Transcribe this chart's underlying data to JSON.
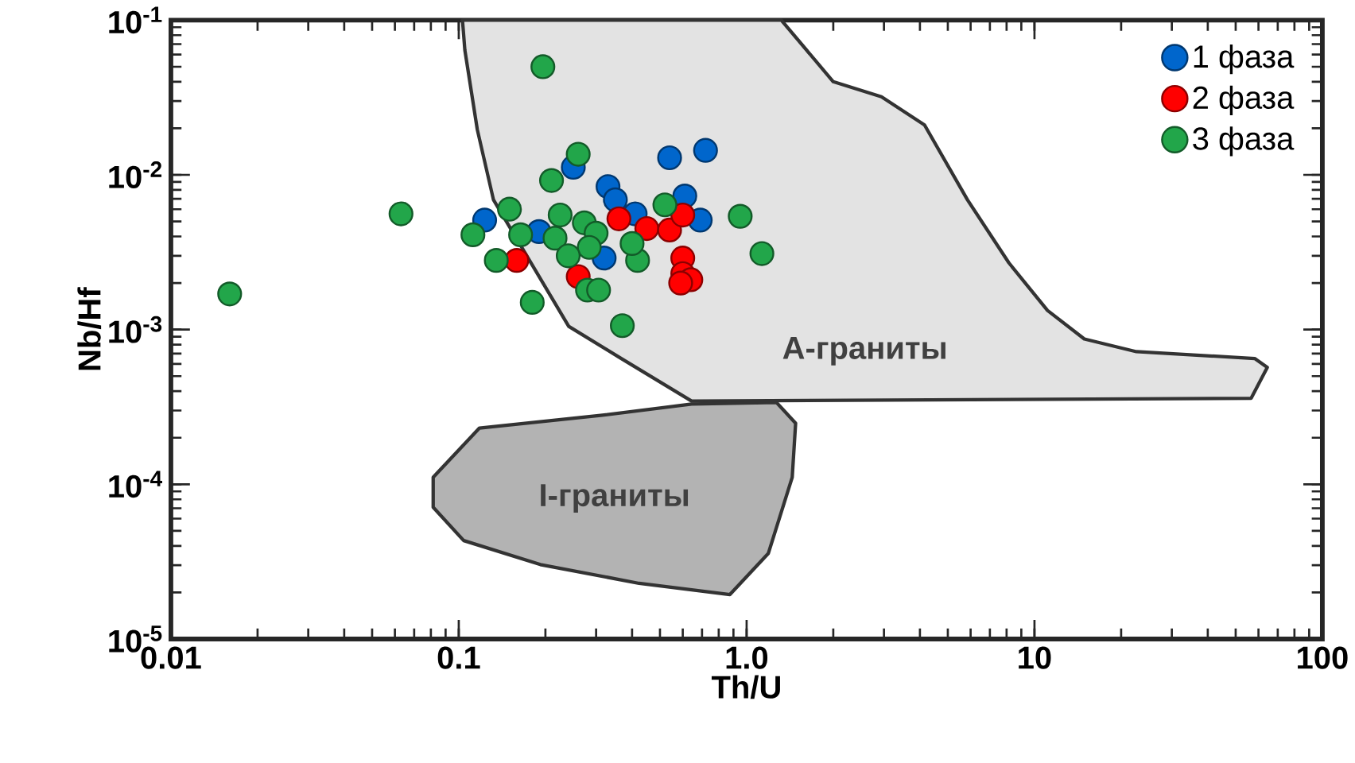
{
  "chart_data": {
    "type": "scatter",
    "xlabel": "Th/U",
    "ylabel": "Nb/Hf",
    "log": "xy",
    "xlim": [
      0.01,
      100
    ],
    "ylim": [
      1e-05,
      0.1
    ],
    "xticks": [
      0.01,
      0.1,
      {
        "value": 1,
        "label": "1.0"
      },
      10,
      100
    ],
    "yticks": [
      {
        "value": 1e-05,
        "label": "10$^{-5}$"
      },
      {
        "value": 0.0001,
        "label": "10$^{-4}$"
      },
      {
        "value": 0.001,
        "label": "10$^{-3}$"
      },
      {
        "value": 0.01,
        "label": "10$^{-2}$"
      },
      {
        "value": 0.1,
        "label": "10$^{-1}$"
      }
    ],
    "legend": "top right",
    "grid": false,
    "series": [
      {
        "type": "area",
        "name": "A-граниты",
        "marker": "none",
        "color": "#e3e3e3",
        "x": [
          0.103,
          0.105,
          0.116,
          0.132,
          0.241,
          0.367,
          0.644,
          56.6,
          64.4,
          58.2,
          22.6,
          14.9,
          11.1,
          8.15,
          5.85,
          4.15,
          2.94,
          2.0,
          1.32
        ],
        "values": [
          0.1,
          0.064,
          0.0196,
          0.0069,
          0.00105,
          0.00065,
          0.000345,
          0.00036,
          0.00057,
          0.00065,
          0.00072,
          0.00087,
          0.00133,
          0.0027,
          0.0069,
          0.021,
          0.032,
          0.04,
          0.1
        ]
      },
      {
        "type": "area",
        "name": "I-граниты",
        "marker": "none",
        "color": "#b3b3b3",
        "x": [
          0.0815,
          0.118,
          0.311,
          0.644,
          1.27,
          1.48,
          1.44,
          1.19,
          0.875,
          0.423,
          0.192,
          0.104,
          0.0815
        ],
        "values": [
          0.000111,
          0.000231,
          0.000279,
          0.00033,
          0.000338,
          0.000248,
          0.000111,
          3.58e-05,
          1.94e-05,
          2.29e-05,
          3.03e-05,
          4.33e-05,
          7.1e-05
        ]
      },
      {
        "name": "1 фаза",
        "marker": "circle",
        "color": "#0066cc",
        "x": [
          0.54,
          0.72,
          0.33,
          0.35,
          0.41,
          0.61,
          0.69,
          0.32,
          0.123,
          0.25,
          0.19
        ],
        "values": [
          0.0129,
          0.0144,
          0.0084,
          0.0069,
          0.0056,
          0.0073,
          0.0051,
          0.0029,
          0.0051,
          0.0112,
          0.0043
        ]
      },
      {
        "name": "2 фаза",
        "marker": "circle",
        "color": "#ff0000",
        "x": [
          0.36,
          0.45,
          0.54,
          0.6,
          0.6,
          0.6,
          0.64,
          0.59,
          0.159,
          0.26
        ],
        "values": [
          0.0052,
          0.0045,
          0.0044,
          0.0055,
          0.0029,
          0.0023,
          0.0021,
          0.002,
          0.0028,
          0.0022
        ]
      },
      {
        "name": "3 фаза",
        "marker": "circle",
        "color": "#22a64a",
        "x": [
          0.016,
          0.063,
          0.196,
          0.26,
          0.21,
          0.15,
          0.112,
          0.164,
          0.135,
          0.225,
          0.273,
          0.3,
          0.216,
          0.284,
          0.24,
          0.418,
          0.4,
          0.52,
          0.95,
          1.13,
          0.18,
          0.28,
          0.306,
          0.37
        ],
        "values": [
          0.0017,
          0.0056,
          0.05,
          0.0136,
          0.0092,
          0.006,
          0.0041,
          0.0041,
          0.0028,
          0.0055,
          0.0049,
          0.0042,
          0.0039,
          0.0034,
          0.003,
          0.0028,
          0.0036,
          0.0064,
          0.0054,
          0.0031,
          0.0015,
          0.0018,
          0.0018,
          0.00106
        ]
      }
    ]
  }
}
